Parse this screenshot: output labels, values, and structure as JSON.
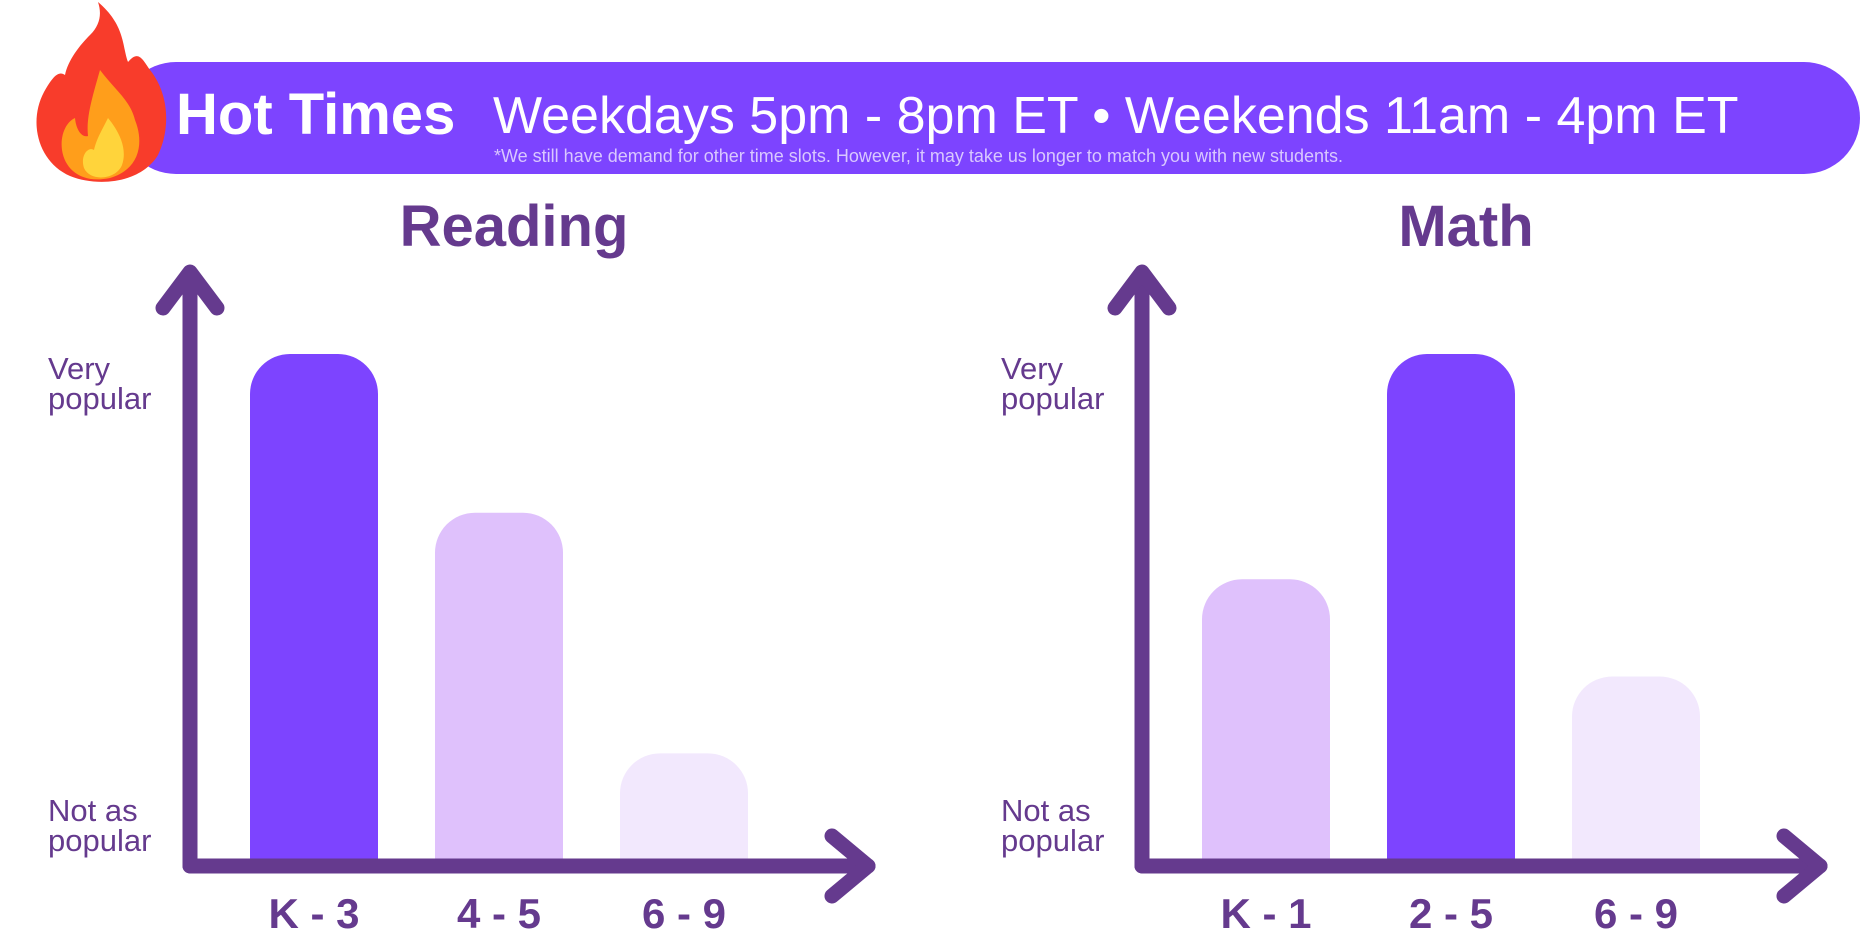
{
  "banner": {
    "title": "Hot Times",
    "times": "Weekdays 5pm - 8pm ET  •  Weekends 11am - 4pm ET",
    "note": "*We still have demand for other time slots. However, it may take us longer to match you with new students.",
    "background_color": "#7d44ff",
    "icon": "fire-icon"
  },
  "y_axis_labels": {
    "top": "Very\npopular",
    "bottom": "Not as\npopular"
  },
  "colors": {
    "axis": "#653a8e",
    "title": "#653a8e",
    "high": "#7d44ff",
    "medium": "#dfc1fc",
    "low": "#f2e8fd"
  },
  "chart_data": [
    {
      "type": "bar",
      "title": "Reading",
      "categories": [
        "K - 3",
        "4 - 5",
        "6 - 9"
      ],
      "values": [
        100,
        69,
        22
      ],
      "levels": [
        "high",
        "medium",
        "low"
      ],
      "ylim": [
        0,
        100
      ],
      "y_tick_labels": [
        "Very popular",
        "Not as popular"
      ]
    },
    {
      "type": "bar",
      "title": "Math",
      "categories": [
        "K - 1",
        "2 - 5",
        "6 - 9"
      ],
      "values": [
        56,
        100,
        37
      ],
      "levels": [
        "medium",
        "high",
        "low"
      ],
      "ylim": [
        0,
        100
      ],
      "y_tick_labels": [
        "Very popular",
        "Not as popular"
      ]
    }
  ]
}
